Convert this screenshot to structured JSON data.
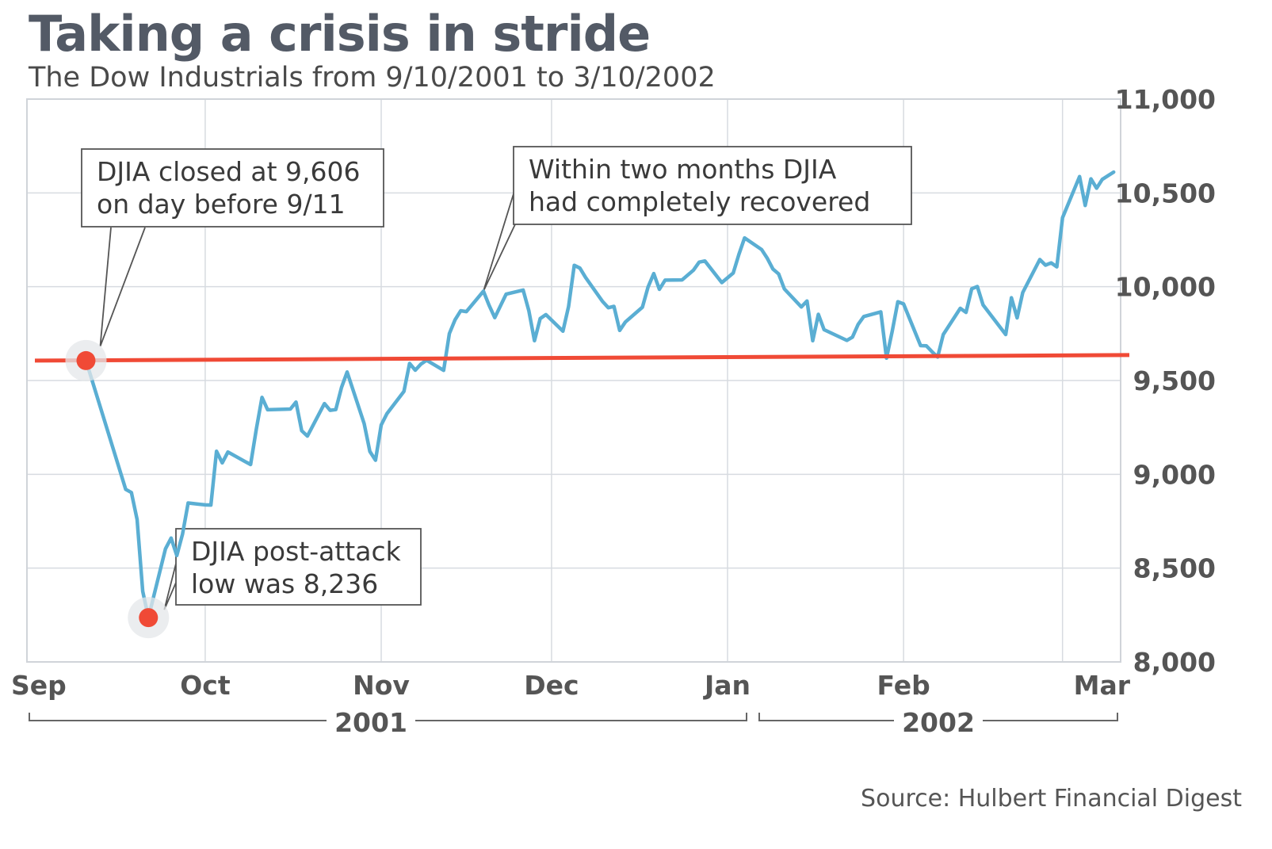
{
  "title": "Taking a crisis in stride",
  "subtitle": "The Dow Industrials from 9/10/2001 to 3/10/2002",
  "source": "Source: Hulbert Financial Digest",
  "colors": {
    "line": "#5aaed3",
    "reference": "#f04a36",
    "marker": "#f04a36",
    "grid": "#d7dbe0",
    "text": "#555555"
  },
  "chart_data": {
    "type": "line",
    "title": "Taking a crisis in stride",
    "subtitle": "The Dow Industrials from 9/10/2001 to 3/10/2002",
    "ylim": [
      8000,
      11000
    ],
    "yticks": [
      8000,
      8500,
      9000,
      9500,
      10000,
      10500,
      11000
    ],
    "ytick_labels": [
      "8,000",
      "8,500",
      "9,000",
      "9,500",
      "10,000",
      "10,500",
      "11,000"
    ],
    "y_axis_side": "right",
    "grid": true,
    "xlim": [
      "2001-09-10",
      "2002-03-10"
    ],
    "month_ticks": [
      {
        "date": "2001-09-01",
        "label": "Sep"
      },
      {
        "date": "2001-10-01",
        "label": "Oct"
      },
      {
        "date": "2001-11-01",
        "label": "Nov"
      },
      {
        "date": "2001-12-01",
        "label": "Dec"
      },
      {
        "date": "2002-01-01",
        "label": "Jan"
      },
      {
        "date": "2002-02-01",
        "label": "Feb"
      },
      {
        "date": "2002-03-01",
        "label": "Mar"
      }
    ],
    "year_labels": [
      {
        "label": "2001",
        "from": "2001-09-01",
        "to": "2001-12-31"
      },
      {
        "label": "2002",
        "from": "2002-01-01",
        "to": "2002-03-10"
      }
    ],
    "reference_line": {
      "value": 9606,
      "color": "#f04a36"
    },
    "series": [
      {
        "values": [
          [
            "2001-09-10",
            9606
          ],
          [
            "2001-09-17",
            8920
          ],
          [
            "2001-09-18",
            8903
          ],
          [
            "2001-09-19",
            8759
          ],
          [
            "2001-09-20",
            8376
          ],
          [
            "2001-09-21",
            8236
          ],
          [
            "2001-09-24",
            8603
          ],
          [
            "2001-09-25",
            8660
          ],
          [
            "2001-09-26",
            8567
          ],
          [
            "2001-09-27",
            8681
          ],
          [
            "2001-09-28",
            8847
          ],
          [
            "2001-10-01",
            8837
          ],
          [
            "2001-10-02",
            8836
          ],
          [
            "2001-10-03",
            9123
          ],
          [
            "2001-10-04",
            9061
          ],
          [
            "2001-10-05",
            9119
          ],
          [
            "2001-10-08",
            9068
          ],
          [
            "2001-10-09",
            9052
          ],
          [
            "2001-10-10",
            9240
          ],
          [
            "2001-10-11",
            9410
          ],
          [
            "2001-10-12",
            9344
          ],
          [
            "2001-10-15",
            9347
          ],
          [
            "2001-10-16",
            9348
          ],
          [
            "2001-10-17",
            9385
          ],
          [
            "2001-10-18",
            9232
          ],
          [
            "2001-10-19",
            9204
          ],
          [
            "2001-10-22",
            9377
          ],
          [
            "2001-10-23",
            9341
          ],
          [
            "2001-10-24",
            9345
          ],
          [
            "2001-10-25",
            9463
          ],
          [
            "2001-10-26",
            9545
          ],
          [
            "2001-10-29",
            9270
          ],
          [
            "2001-10-30",
            9122
          ],
          [
            "2001-10-31",
            9075
          ],
          [
            "2001-11-01",
            9263
          ],
          [
            "2001-11-02",
            9323
          ],
          [
            "2001-11-05",
            9442
          ],
          [
            "2001-11-06",
            9591
          ],
          [
            "2001-11-07",
            9555
          ],
          [
            "2001-11-08",
            9588
          ],
          [
            "2001-11-09",
            9608
          ],
          [
            "2001-11-12",
            9554
          ],
          [
            "2001-11-13",
            9750
          ],
          [
            "2001-11-14",
            9823
          ],
          [
            "2001-11-15",
            9872
          ],
          [
            "2001-11-16",
            9867
          ],
          [
            "2001-11-19",
            9976
          ],
          [
            "2001-11-20",
            9901
          ],
          [
            "2001-11-21",
            9835
          ],
          [
            "2001-11-23",
            9960
          ],
          [
            "2001-11-26",
            9982
          ],
          [
            "2001-11-27",
            9872
          ],
          [
            "2001-11-28",
            9712
          ],
          [
            "2001-11-29",
            9830
          ],
          [
            "2001-11-30",
            9851
          ],
          [
            "2001-12-03",
            9763
          ],
          [
            "2001-12-04",
            9894
          ],
          [
            "2001-12-05",
            10114
          ],
          [
            "2001-12-06",
            10099
          ],
          [
            "2001-12-07",
            10049
          ],
          [
            "2001-12-10",
            9921
          ],
          [
            "2001-12-11",
            9888
          ],
          [
            "2001-12-12",
            9895
          ],
          [
            "2001-12-13",
            9767
          ],
          [
            "2001-12-14",
            9812
          ],
          [
            "2001-12-17",
            9891
          ],
          [
            "2001-12-18",
            9998
          ],
          [
            "2001-12-19",
            10070
          ],
          [
            "2001-12-20",
            9986
          ],
          [
            "2001-12-21",
            10035
          ],
          [
            "2001-12-24",
            10036
          ],
          [
            "2001-12-26",
            10088
          ],
          [
            "2001-12-27",
            10131
          ],
          [
            "2001-12-28",
            10137
          ],
          [
            "2001-12-31",
            10022
          ],
          [
            "2002-01-02",
            10073
          ],
          [
            "2002-01-03",
            10172
          ],
          [
            "2002-01-04",
            10260
          ],
          [
            "2002-01-07",
            10198
          ],
          [
            "2002-01-08",
            10151
          ],
          [
            "2002-01-09",
            10094
          ],
          [
            "2002-01-10",
            10068
          ],
          [
            "2002-01-11",
            9988
          ],
          [
            "2002-01-14",
            9892
          ],
          [
            "2002-01-15",
            9924
          ],
          [
            "2002-01-16",
            9712
          ],
          [
            "2002-01-17",
            9853
          ],
          [
            "2002-01-18",
            9771
          ],
          [
            "2002-01-22",
            9714
          ],
          [
            "2002-01-23",
            9731
          ],
          [
            "2002-01-24",
            9799
          ],
          [
            "2002-01-25",
            9841
          ],
          [
            "2002-01-28",
            9866
          ],
          [
            "2002-01-29",
            9619
          ],
          [
            "2002-01-30",
            9763
          ],
          [
            "2002-01-31",
            9920
          ],
          [
            "2002-02-01",
            9908
          ],
          [
            "2002-02-04",
            9686
          ],
          [
            "2002-02-05",
            9685
          ],
          [
            "2002-02-06",
            9654
          ],
          [
            "2002-02-07",
            9625
          ],
          [
            "2002-02-08",
            9745
          ],
          [
            "2002-02-11",
            9885
          ],
          [
            "2002-02-12",
            9863
          ],
          [
            "2002-02-13",
            9989
          ],
          [
            "2002-02-14",
            10001
          ],
          [
            "2002-02-15",
            9903
          ],
          [
            "2002-02-19",
            9745
          ],
          [
            "2002-02-20",
            9941
          ],
          [
            "2002-02-21",
            9834
          ],
          [
            "2002-02-22",
            9969
          ],
          [
            "2002-02-25",
            10145
          ],
          [
            "2002-02-26",
            10115
          ],
          [
            "2002-02-27",
            10127
          ],
          [
            "2002-02-28",
            10106
          ],
          [
            "2002-03-01",
            10368
          ],
          [
            "2002-03-04",
            10587
          ],
          [
            "2002-03-05",
            10433
          ],
          [
            "2002-03-06",
            10575
          ],
          [
            "2002-03-07",
            10525
          ],
          [
            "2002-03-08",
            10572
          ],
          [
            "2002-03-10",
            10611
          ]
        ]
      }
    ],
    "markers": [
      {
        "date": "2001-09-10",
        "value": 9606
      },
      {
        "date": "2001-09-21",
        "value": 8236
      }
    ],
    "annotations": [
      {
        "lines": [
          "DJIA closed at 9,606",
          "on day before 9/11"
        ],
        "target": "2001-09-10"
      },
      {
        "lines": [
          "Within two months DJIA",
          "had completely recovered"
        ],
        "target": "2001-11-19"
      },
      {
        "lines": [
          "DJIA post-attack",
          "low was 8,236"
        ],
        "target": "2001-09-21"
      }
    ]
  }
}
